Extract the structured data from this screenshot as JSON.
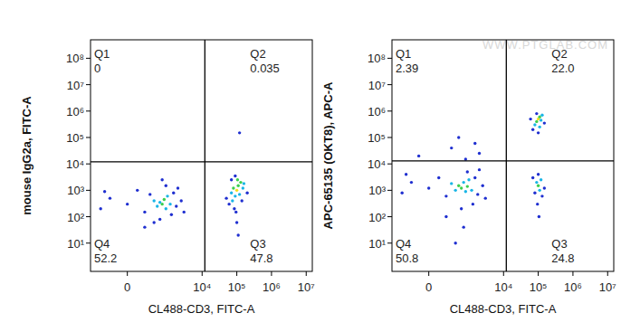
{
  "chart_data": [
    {
      "type": "scatter",
      "log": true,
      "xlabel": "CL488-CD3, FITC-A",
      "ylabel": "mouse IgG2a, FITC-A",
      "xlim": [
        -800,
        15000000
      ],
      "ylim": [
        0.85,
        500000000
      ],
      "xticks": [
        {
          "value": 0,
          "label": "0"
        },
        {
          "value": 10000,
          "label": "10⁴"
        },
        {
          "value": 100000,
          "label": "10⁵"
        },
        {
          "value": 1000000,
          "label": "10⁶"
        },
        {
          "value": 10000000,
          "label": "10⁷"
        }
      ],
      "yticks": [
        {
          "value": 10,
          "label": "10¹"
        },
        {
          "value": 100,
          "label": "10²"
        },
        {
          "value": 1000,
          "label": "10³"
        },
        {
          "value": 10000,
          "label": "10⁴"
        },
        {
          "value": 100000,
          "label": "10⁵"
        },
        {
          "value": 1000000,
          "label": "10⁶"
        },
        {
          "value": 10000000,
          "label": "10⁷"
        },
        {
          "value": 100000000,
          "label": "10⁸"
        }
      ],
      "gates": {
        "x": 12000,
        "y": 12000
      },
      "quadrants": {
        "names": [
          "Q1",
          "Q2",
          "Q3",
          "Q4"
        ],
        "values": [
          0,
          0.035,
          47.8,
          52.2
        ],
        "value_labels": [
          "0",
          "0.035",
          "47.8",
          "52.2"
        ]
      },
      "x": [
        -400,
        -200,
        0,
        100,
        200,
        300,
        400,
        500,
        600,
        700,
        800,
        900,
        1000,
        1200,
        1500,
        1800,
        2500,
        3000,
        600,
        900,
        1300,
        -300,
        200,
        2000,
        700,
        400,
        60000,
        70000,
        80000,
        90000,
        100000,
        110000,
        120000,
        130000,
        150000,
        85000,
        95000,
        100000,
        70000,
        200000,
        50000,
        140000,
        105000,
        75000,
        160000,
        110000,
        90000,
        120000
      ],
      "values": [
        200,
        500,
        300,
        1000,
        150,
        700,
        400,
        250,
        350,
        300,
        450,
        200,
        600,
        300,
        800,
        250,
        400,
        150,
        80,
        1500,
        120,
        900,
        40,
        1200,
        2500,
        60,
        300,
        800,
        1200,
        600,
        1000,
        1500,
        700,
        2000,
        1200,
        200,
        150,
        60,
        2500,
        800,
        500,
        400,
        2500,
        400,
        1800,
        20,
        3500,
        150000
      ],
      "colors": [
        "#1f2fd0",
        "#1f2fd0",
        "#1f2fd0",
        "#1f2fd0",
        "#1f2fd0",
        "#1f2fd0",
        "#19b5e6",
        "#19b5e6",
        "#19b5e6",
        "#3ccf4e",
        "#3ccf4e",
        "#19b5e6",
        "#19b5e6",
        "#19b5e6",
        "#1f2fd0",
        "#1f2fd0",
        "#1f2fd0",
        "#1f2fd0",
        "#1f2fd0",
        "#1f2fd0",
        "#1f2fd0",
        "#1f2fd0",
        "#1f2fd0",
        "#1f2fd0",
        "#1f2fd0",
        "#1f2fd0",
        "#1f2fd0",
        "#19b5e6",
        "#3ccf4e",
        "#19b5e6",
        "#f2e01a",
        "#3ccf4e",
        "#19b5e6",
        "#3ccf4e",
        "#19b5e6",
        "#1f2fd0",
        "#1f2fd0",
        "#1f2fd0",
        "#1f2fd0",
        "#1f2fd0",
        "#1f2fd0",
        "#1f2fd0",
        "#3ccf4e",
        "#19b5e6",
        "#19b5e6",
        "#1f2fd0",
        "#1f2fd0",
        "#1f2fd0"
      ]
    },
    {
      "type": "scatter",
      "log": true,
      "xlabel": "CL488-CD3, FITC-A",
      "ylabel": "APC-65135 (OKT8), APC-A",
      "watermark": "WWW.PTGLAB.COM",
      "xlim": [
        -800,
        15000000
      ],
      "ylim": [
        0.85,
        500000000
      ],
      "xticks": [
        {
          "value": 0,
          "label": "0"
        },
        {
          "value": 10000,
          "label": "10⁴"
        },
        {
          "value": 100000,
          "label": "10⁵"
        },
        {
          "value": 1000000,
          "label": "10⁶"
        },
        {
          "value": 10000000,
          "label": "10⁷"
        }
      ],
      "yticks": [
        {
          "value": 10,
          "label": "10¹"
        },
        {
          "value": 100,
          "label": "10²"
        },
        {
          "value": 1000,
          "label": "10³"
        },
        {
          "value": 10000,
          "label": "10⁴"
        },
        {
          "value": 100000,
          "label": "10⁵"
        },
        {
          "value": 1000000,
          "label": "10⁶"
        },
        {
          "value": 10000000,
          "label": "10⁷"
        },
        {
          "value": 100000000,
          "label": "10⁸"
        }
      ],
      "gates": {
        "x": 12000,
        "y": 13000
      },
      "quadrants": {
        "names": [
          "Q1",
          "Q2",
          "Q3",
          "Q4"
        ],
        "values": [
          2.39,
          22.0,
          24.8,
          50.8
        ],
        "value_labels": [
          "2.39",
          "22.0",
          "24.8",
          "50.8"
        ]
      },
      "x": [
        -400,
        -200,
        0,
        100,
        200,
        300,
        400,
        500,
        600,
        700,
        800,
        900,
        1000,
        1200,
        1500,
        1800,
        2500,
        3000,
        600,
        900,
        1300,
        -300,
        200,
        2000,
        700,
        400,
        -100,
        300,
        800,
        1500,
        2000,
        500,
        100000,
        110000,
        90000,
        120000,
        80000,
        130000,
        70000,
        100000,
        150000,
        90000,
        60000,
        110000,
        100000,
        90000,
        110000,
        120000,
        80000,
        130000,
        100000,
        70000,
        150000,
        95000,
        105000
      ],
      "values": [
        800,
        2000,
        1200,
        3000,
        600,
        1800,
        1000,
        1500,
        1200,
        2000,
        900,
        1400,
        2500,
        1000,
        3000,
        700,
        1500,
        500,
        200,
        5000,
        300,
        4000,
        100,
        6000,
        40,
        10,
        20000,
        40000,
        15000,
        60000,
        25000,
        100000,
        500000,
        600000,
        400000,
        450000,
        300000,
        700000,
        200000,
        150000,
        350000,
        800000,
        500000,
        250000,
        1500,
        2000,
        1000,
        2500,
        800,
        600,
        4000,
        3000,
        1200,
        300,
        100
      ],
      "colors": [
        "#1f2fd0",
        "#1f2fd0",
        "#1f2fd0",
        "#1f2fd0",
        "#1f2fd0",
        "#19b5e6",
        "#19b5e6",
        "#3ccf4e",
        "#3ccf4e",
        "#19b5e6",
        "#19b5e6",
        "#3ccf4e",
        "#19b5e6",
        "#19b5e6",
        "#1f2fd0",
        "#1f2fd0",
        "#1f2fd0",
        "#1f2fd0",
        "#1f2fd0",
        "#1f2fd0",
        "#1f2fd0",
        "#1f2fd0",
        "#1f2fd0",
        "#1f2fd0",
        "#1f2fd0",
        "#1f2fd0",
        "#1f2fd0",
        "#1f2fd0",
        "#1f2fd0",
        "#1f2fd0",
        "#1f2fd0",
        "#1f2fd0",
        "#f2e01a",
        "#3ccf4e",
        "#3ccf4e",
        "#19b5e6",
        "#19b5e6",
        "#19b5e6",
        "#1f2fd0",
        "#1f2fd0",
        "#1f2fd0",
        "#1f2fd0",
        "#1f2fd0",
        "#19b5e6",
        "#3ccf4e",
        "#19b5e6",
        "#19b5e6",
        "#19b5e6",
        "#1f2fd0",
        "#1f2fd0",
        "#1f2fd0",
        "#1f2fd0",
        "#1f2fd0",
        "#1f2fd0",
        "#1f2fd0"
      ]
    }
  ]
}
